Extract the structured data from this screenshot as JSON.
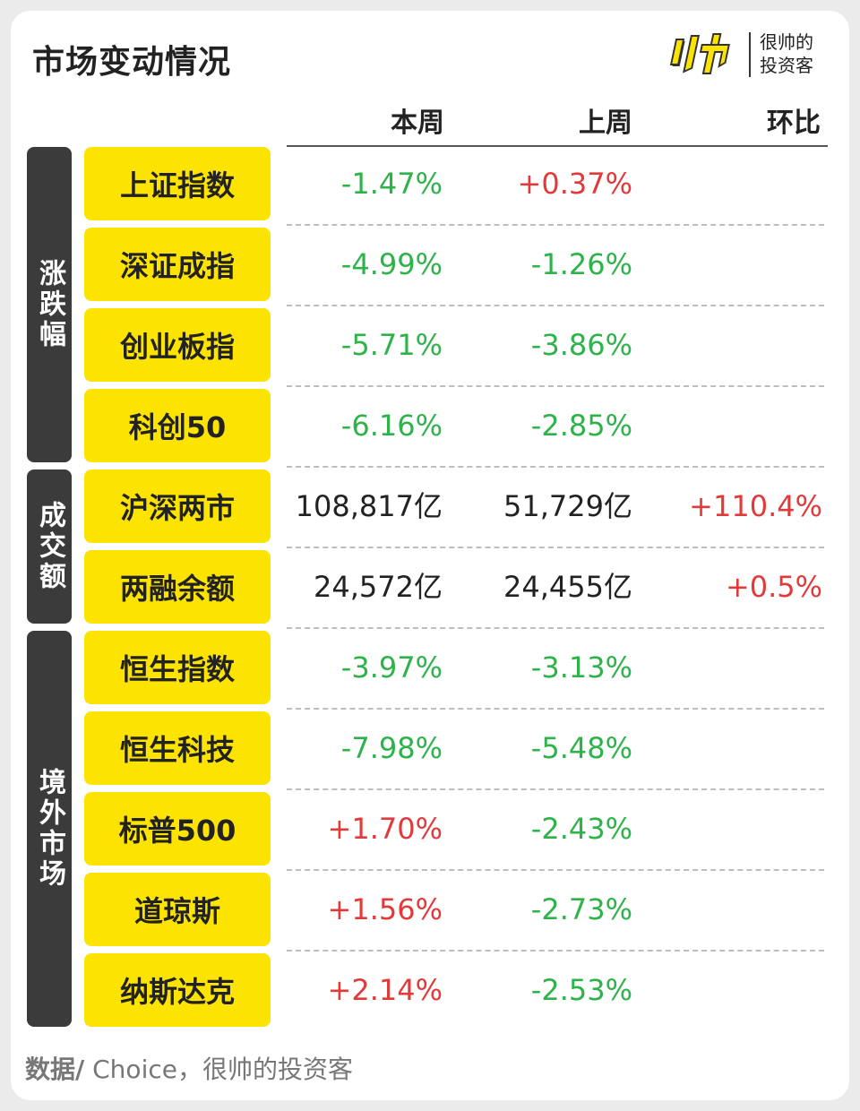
{
  "title": "市场变动情况",
  "brand": {
    "logo_icon": "shuai-logo-icon",
    "line1": "很帅的",
    "line2": "投资客"
  },
  "columns": [
    "本周",
    "上周",
    "环比"
  ],
  "groups": [
    {
      "label": "涨跌幅"
    },
    {
      "label": "成交额"
    },
    {
      "label": "境外市场"
    }
  ],
  "rows": [
    {
      "name": "上证指数",
      "this_week": "-1.47%",
      "last_week": "+0.37%",
      "change": ""
    },
    {
      "name": "深证成指",
      "this_week": "-4.99%",
      "last_week": "-1.26%",
      "change": ""
    },
    {
      "name": "创业板指",
      "this_week": "-5.71%",
      "last_week": "-3.86%",
      "change": ""
    },
    {
      "name": "科创50",
      "this_week": "-6.16%",
      "last_week": "-2.85%",
      "change": ""
    },
    {
      "name": "沪深两市",
      "this_week": "108,817亿",
      "last_week": "51,729亿",
      "change": "+110.4%"
    },
    {
      "name": "两融余额",
      "this_week": "24,572亿",
      "last_week": "24,455亿",
      "change": "+0.5%"
    },
    {
      "name": "恒生指数",
      "this_week": "-3.97%",
      "last_week": "-3.13%",
      "change": ""
    },
    {
      "name": "恒生科技",
      "this_week": "-7.98%",
      "last_week": "-5.48%",
      "change": ""
    },
    {
      "name": "标普500",
      "this_week": "+1.70%",
      "last_week": "-2.43%",
      "change": ""
    },
    {
      "name": "道琼斯",
      "this_week": "+1.56%",
      "last_week": "-2.73%",
      "change": ""
    },
    {
      "name": "纳斯达克",
      "this_week": "+2.14%",
      "last_week": "-2.53%",
      "change": ""
    }
  ],
  "colors": {
    "up": "#e2393a",
    "down": "#2db34a",
    "label_bg": "#fde400",
    "group_bg": "#3b3b3b"
  },
  "source": {
    "prefix": "数据/",
    "text": " Choice，很帅的投资客"
  }
}
